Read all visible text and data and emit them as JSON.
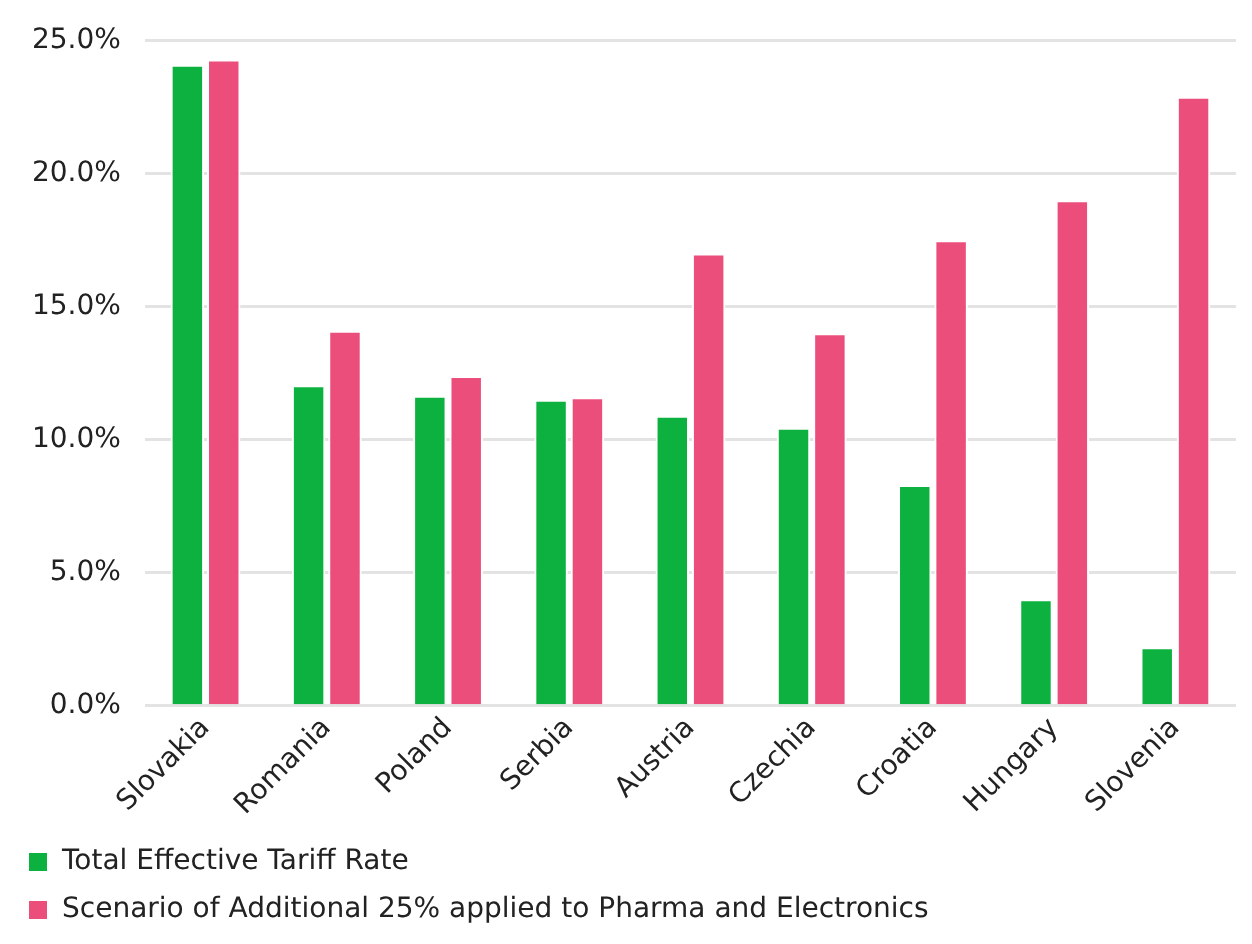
{
  "chart_data": {
    "type": "bar",
    "categories": [
      "Slovakia",
      "Romania",
      "Poland",
      "Serbia",
      "Austria",
      "Czechia",
      "Croatia",
      "Hungary",
      "Slovenia"
    ],
    "series": [
      {
        "name": "Total Effective Tariff Rate",
        "color": "#0db13f",
        "values": [
          24.1,
          12.05,
          11.65,
          11.5,
          10.9,
          10.45,
          8.3,
          4.0,
          2.2
        ]
      },
      {
        "name": "Scenario of Additional 25% applied to Pharma and Electronics",
        "color": "#ec4e7c",
        "values": [
          24.3,
          14.1,
          12.4,
          11.6,
          17.0,
          14.0,
          17.5,
          19.0,
          22.9
        ]
      }
    ],
    "ylim": [
      0,
      25
    ],
    "yticks": [
      {
        "value": 0,
        "label": "0.0%"
      },
      {
        "value": 5,
        "label": "5.0%"
      },
      {
        "value": 10,
        "label": "10.0%"
      },
      {
        "value": 15,
        "label": "15.0%"
      },
      {
        "value": 20,
        "label": "20.0%"
      },
      {
        "value": 25,
        "label": "25.0%"
      }
    ],
    "grid": "y",
    "legend": "bottom"
  }
}
